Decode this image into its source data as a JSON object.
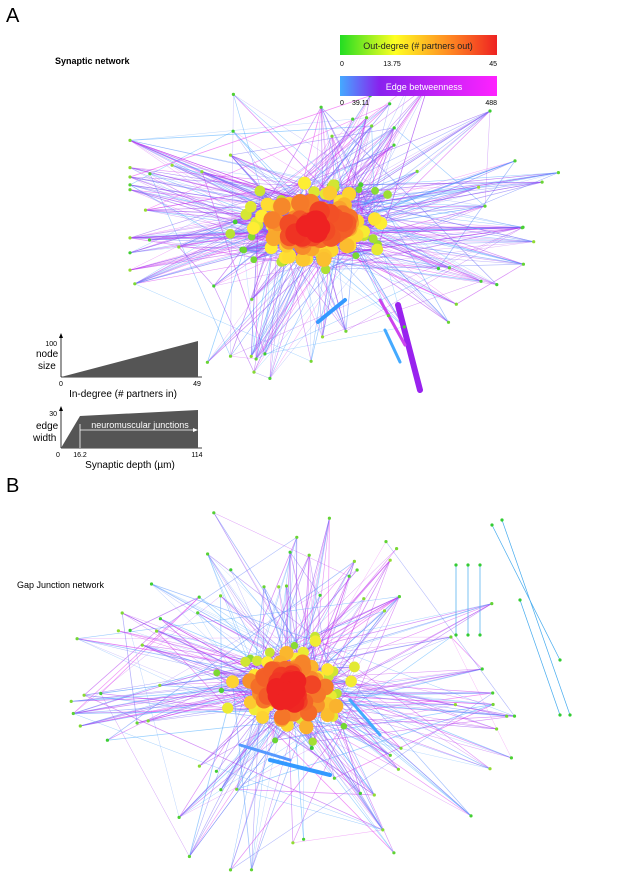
{
  "panel_a": {
    "letter": "A",
    "title": "Synaptic network",
    "outdegree_legend": {
      "label": "Out-degree (# partners out)",
      "ticks": [
        "0",
        "13.75",
        "45"
      ],
      "colors": [
        "#22dd22",
        "#ffff22",
        "#ff8822",
        "#ee2222"
      ]
    },
    "betweenness_legend": {
      "label": "Edge betweenness",
      "ticks": [
        "0",
        "39.11",
        "488"
      ],
      "colors": [
        "#44aaff",
        "#8822ee",
        "#ff22ff"
      ]
    },
    "node_size_legend": {
      "ylabel_line1": "node",
      "ylabel_line2": "size",
      "ymax": "100",
      "x_ticks": [
        "0",
        "49"
      ],
      "xlabel": "In-degree (# partners in)"
    },
    "edge_width_legend": {
      "ylabel_line1": "edge",
      "ylabel_line2": "width",
      "ymax": "30",
      "x_ticks": [
        "0",
        "16.2",
        "114"
      ],
      "annotation": "neuromuscular junctions",
      "xlabel": "Synaptic depth (µm)"
    }
  },
  "panel_b": {
    "letter": "B",
    "title": "Gap Junction network"
  },
  "colors": {
    "node_low": "#33cc33",
    "node_mid": "#ffee33",
    "node_high": "#ee2222",
    "edge_low": "#44aaff",
    "edge_mid": "#9933ee",
    "edge_high": "#ee33ee",
    "legend_fill": "#555555"
  }
}
